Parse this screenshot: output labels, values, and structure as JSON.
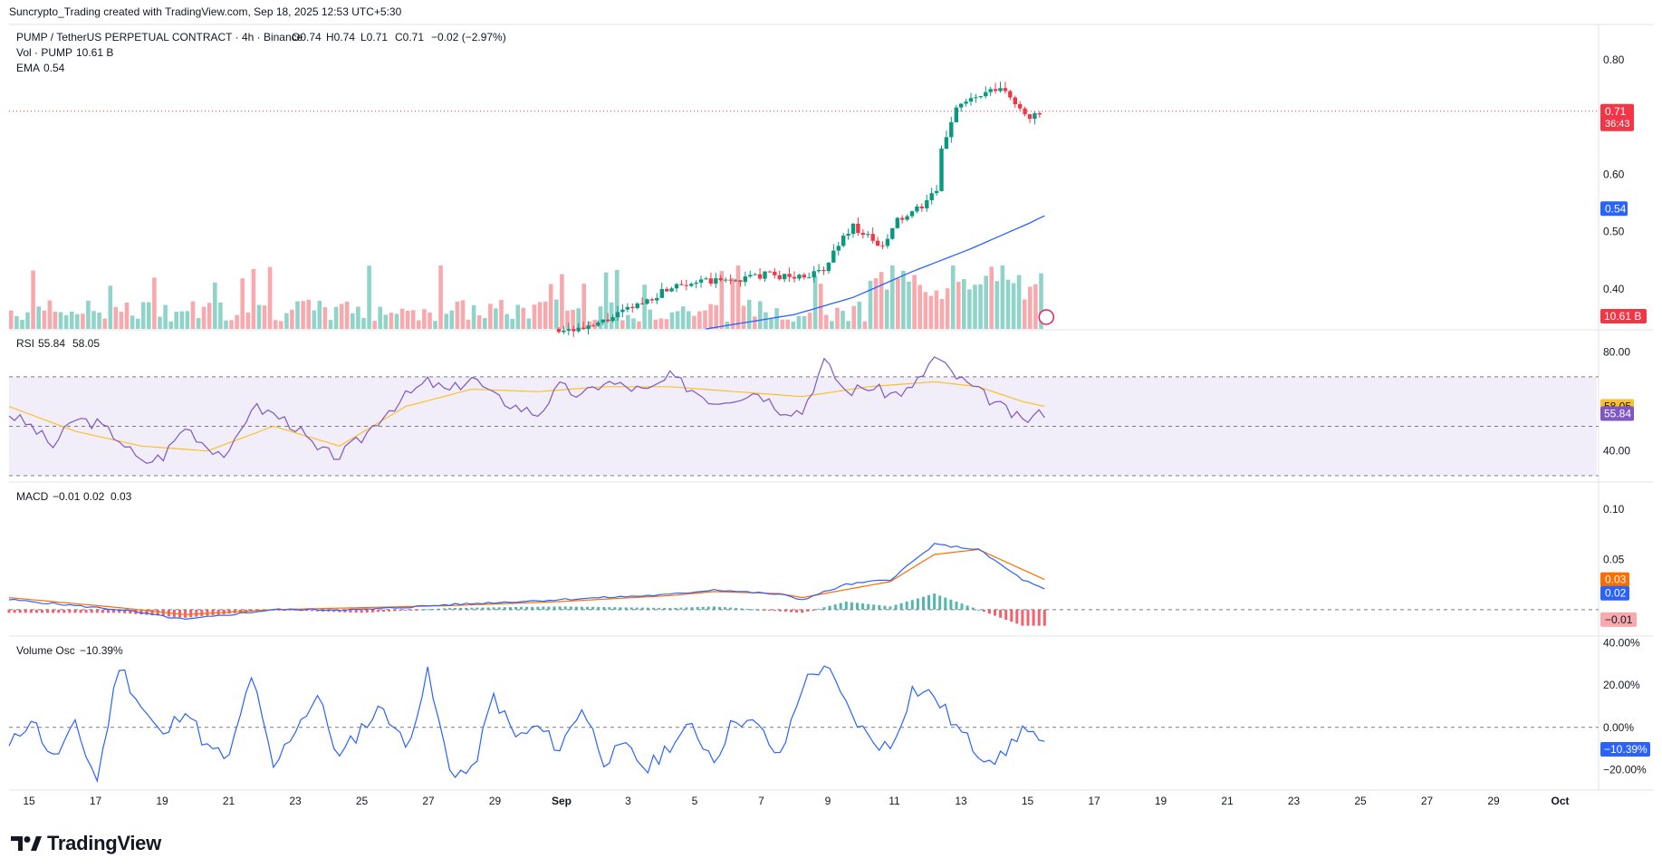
{
  "credit": "Suncrypto_Trading created with TradingView.com, Sep 18, 2025 12:53 UTC+5:30",
  "brand": "TradingView",
  "legend": {
    "symbol": "PUMP / TetherUS PERPETUAL CONTRACT · 4h · Binance",
    "o": "O0.74",
    "h": "H0.74",
    "l": "L0.71",
    "c": "C0.71",
    "chg": "−0.02 (−2.97%)",
    "vol_label": "Vol · PUMP",
    "vol_value": "10.61 B",
    "ema_label": "EMA",
    "ema_value": "0.54",
    "rsi_label": "RSI",
    "rsi_value": "55.84",
    "rsi_ma": "58.05",
    "macd_label": "MACD",
    "macd_hist": "−0.01",
    "macd_line": "0.02",
    "macd_signal": "0.03",
    "vo_label": "Volume Osc",
    "vo_value": "−10.39%"
  },
  "colors": {
    "up": "#089981",
    "down": "#f23645",
    "vol_up": "#8fd3c9",
    "vol_down": "#f7a9ad",
    "ema": "#2962ff",
    "rsi": "#7e57c2",
    "rsi_ma": "#fbc02d",
    "macd": "#2962ff",
    "signal": "#ff6d00",
    "vo": "#2962ff"
  },
  "chart_data": [
    {
      "type": "candlestick",
      "name": "price",
      "y_ticks": [
        "0.80",
        "0.60",
        "0.50",
        "0.40"
      ],
      "y_tick_values": [
        0.8,
        0.6,
        0.5,
        0.4
      ],
      "ylim": [
        0.33,
        0.86
      ],
      "last_price": 0.71,
      "last_price_label": "0.71",
      "countdown": "36:43",
      "ema_value_label": "0.54",
      "volume_label": "10.61 B",
      "x_ticks": [
        "15",
        "17",
        "19",
        "21",
        "23",
        "25",
        "27",
        "29",
        "Sep",
        "3",
        "5",
        "7",
        "9",
        "11",
        "13",
        "15",
        "17",
        "19",
        "21",
        "23",
        "25",
        "27",
        "29",
        "Oct"
      ],
      "ohlc_anchors": [
        [
          "Sep 2",
          0.33
        ],
        [
          "Sep 4",
          0.38
        ],
        [
          "Sep 5",
          0.41
        ],
        [
          "Sep 7",
          0.415
        ],
        [
          "Sep 8",
          0.425
        ],
        [
          "Sep 9",
          0.42
        ],
        [
          "Sep 10",
          0.43
        ],
        [
          "Sep 10 12h",
          0.48
        ],
        [
          "Sep 11",
          0.51
        ],
        [
          "Sep 12",
          0.47
        ],
        [
          "Sep 12 12h",
          0.52
        ],
        [
          "Sep 13",
          0.53
        ],
        [
          "Sep 13 20h",
          0.57
        ],
        [
          "Sep 14",
          0.64
        ],
        [
          "Sep 14 12h",
          0.72
        ],
        [
          "Sep 15",
          0.73
        ],
        [
          "Sep 16",
          0.75
        ],
        [
          "Sep 17",
          0.7
        ],
        [
          "Sep 18",
          0.71
        ]
      ],
      "ema_anchors": [
        [
          "Sep 6",
          0.33
        ],
        [
          "Sep 9",
          0.355
        ],
        [
          "Sep 11",
          0.385
        ],
        [
          "Sep 13",
          0.43
        ],
        [
          "Sep 15",
          0.47
        ],
        [
          "Sep 17",
          0.515
        ],
        [
          "Sep 18",
          0.54
        ]
      ]
    },
    {
      "type": "line",
      "name": "RSI",
      "y_ticks": [
        "80.00",
        "40.00"
      ],
      "y_tick_values": [
        80,
        40
      ],
      "ylim": [
        30,
        85
      ],
      "bands": [
        70,
        50,
        30
      ],
      "rsi_value_label": "55.84",
      "rsi_ma_label": "58.05",
      "rsi_anchors": [
        [
          0,
          55
        ],
        [
          2,
          50
        ],
        [
          4,
          42
        ],
        [
          6,
          53
        ],
        [
          8,
          51
        ],
        [
          10,
          45
        ],
        [
          12,
          35
        ],
        [
          14,
          38
        ],
        [
          16,
          50
        ],
        [
          18,
          42
        ],
        [
          20,
          38
        ],
        [
          22,
          58
        ],
        [
          24,
          55
        ],
        [
          26,
          50
        ],
        [
          28,
          40
        ],
        [
          30,
          38
        ],
        [
          32,
          45
        ],
        [
          34,
          55
        ],
        [
          36,
          62
        ],
        [
          38,
          68
        ],
        [
          40,
          64
        ],
        [
          42,
          70
        ],
        [
          44,
          62
        ],
        [
          46,
          58
        ],
        [
          48,
          55
        ],
        [
          50,
          66
        ],
        [
          52,
          62
        ],
        [
          54,
          68
        ],
        [
          56,
          66
        ],
        [
          58,
          64
        ],
        [
          60,
          70
        ],
        [
          62,
          65
        ],
        [
          64,
          60
        ],
        [
          66,
          62
        ],
        [
          68,
          64
        ],
        [
          70,
          57
        ],
        [
          72,
          56
        ],
        [
          74,
          76
        ],
        [
          76,
          64
        ],
        [
          78,
          66
        ],
        [
          80,
          63
        ],
        [
          82,
          65
        ],
        [
          84,
          78
        ],
        [
          86,
          70
        ],
        [
          88,
          64
        ],
        [
          90,
          58
        ],
        [
          92,
          52
        ],
        [
          94,
          55.84
        ]
      ],
      "ma_anchors": [
        [
          0,
          58
        ],
        [
          6,
          48
        ],
        [
          12,
          42
        ],
        [
          18,
          40
        ],
        [
          24,
          50
        ],
        [
          30,
          42
        ],
        [
          36,
          58
        ],
        [
          42,
          65
        ],
        [
          48,
          64
        ],
        [
          54,
          66
        ],
        [
          60,
          66
        ],
        [
          66,
          64
        ],
        [
          72,
          62
        ],
        [
          78,
          66
        ],
        [
          84,
          68
        ],
        [
          88,
          66
        ],
        [
          92,
          60
        ],
        [
          94,
          58.05
        ]
      ]
    },
    {
      "type": "line",
      "name": "MACD",
      "y_ticks": [
        "0.10",
        "0.05"
      ],
      "y_tick_values": [
        0.1,
        0.05
      ],
      "ylim": [
        -0.02,
        0.12
      ],
      "macd_label_value": "0.02",
      "signal_label_value": "0.03",
      "hist_label_value": "−0.01",
      "macd_anchors": [
        [
          0,
          0.01
        ],
        [
          10,
          0.0
        ],
        [
          16,
          -0.01
        ],
        [
          24,
          0.0
        ],
        [
          32,
          0.0
        ],
        [
          40,
          0.005
        ],
        [
          50,
          0.01
        ],
        [
          60,
          0.015
        ],
        [
          64,
          0.02
        ],
        [
          70,
          0.015
        ],
        [
          72,
          0.01
        ],
        [
          76,
          0.025
        ],
        [
          80,
          0.03
        ],
        [
          84,
          0.065
        ],
        [
          88,
          0.06
        ],
        [
          92,
          0.03
        ],
        [
          94,
          0.02
        ]
      ],
      "signal_anchors": [
        [
          0,
          0.012
        ],
        [
          10,
          0.002
        ],
        [
          16,
          -0.005
        ],
        [
          24,
          0.0
        ],
        [
          32,
          0.002
        ],
        [
          40,
          0.004
        ],
        [
          50,
          0.008
        ],
        [
          60,
          0.014
        ],
        [
          64,
          0.018
        ],
        [
          70,
          0.016
        ],
        [
          72,
          0.012
        ],
        [
          76,
          0.02
        ],
        [
          80,
          0.028
        ],
        [
          84,
          0.055
        ],
        [
          88,
          0.06
        ],
        [
          92,
          0.04
        ],
        [
          94,
          0.03
        ]
      ]
    },
    {
      "type": "line",
      "name": "Volume Osc",
      "y_ticks": [
        "40.00%",
        "20.00%",
        "0.00%",
        "−20.00%"
      ],
      "y_tick_values": [
        40,
        20,
        0,
        -20
      ],
      "ylim": [
        -28,
        42
      ],
      "vo_label_value": "−10.39%",
      "vo_anchors": [
        [
          0,
          -10
        ],
        [
          2,
          5
        ],
        [
          4,
          -15
        ],
        [
          6,
          0
        ],
        [
          8,
          -25
        ],
        [
          10,
          30
        ],
        [
          12,
          10
        ],
        [
          14,
          -5
        ],
        [
          16,
          10
        ],
        [
          18,
          -10
        ],
        [
          20,
          -15
        ],
        [
          22,
          25
        ],
        [
          24,
          -20
        ],
        [
          26,
          0
        ],
        [
          28,
          15
        ],
        [
          30,
          -15
        ],
        [
          32,
          0
        ],
        [
          34,
          10
        ],
        [
          36,
          -10
        ],
        [
          38,
          25
        ],
        [
          40,
          -20
        ],
        [
          42,
          -22
        ],
        [
          44,
          15
        ],
        [
          46,
          -5
        ],
        [
          48,
          0
        ],
        [
          50,
          -10
        ],
        [
          52,
          10
        ],
        [
          54,
          -15
        ],
        [
          56,
          -10
        ],
        [
          58,
          -20
        ],
        [
          60,
          -8
        ],
        [
          62,
          0
        ],
        [
          64,
          -15
        ],
        [
          66,
          5
        ],
        [
          68,
          0
        ],
        [
          70,
          -15
        ],
        [
          72,
          20
        ],
        [
          74,
          30
        ],
        [
          76,
          10
        ],
        [
          78,
          -5
        ],
        [
          80,
          -10
        ],
        [
          82,
          18
        ],
        [
          84,
          15
        ],
        [
          86,
          0
        ],
        [
          88,
          -12
        ],
        [
          90,
          -15
        ],
        [
          92,
          0
        ],
        [
          94,
          -10.39
        ]
      ]
    }
  ]
}
